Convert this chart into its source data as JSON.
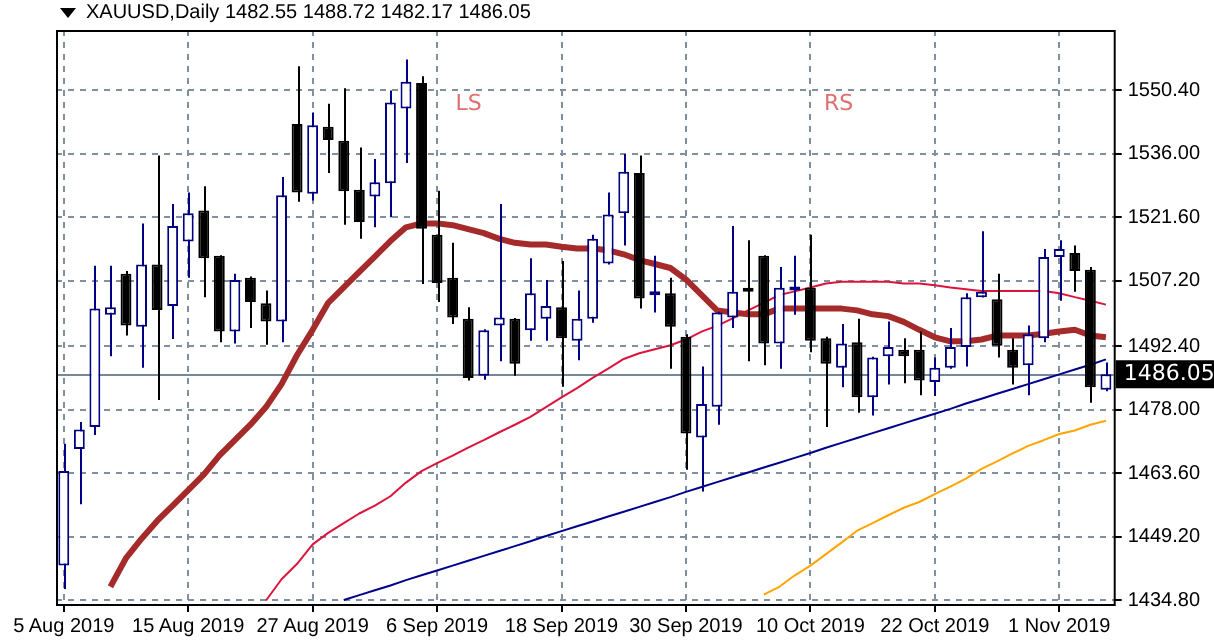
{
  "chart_data": {
    "type": "candlestick",
    "title": "XAUUSD,Daily 1482.55 1488.72 1482.17 1486.05",
    "categories": [
      "5 Aug 2019",
      null,
      null,
      null,
      null,
      null,
      null,
      null,
      "15 Aug 2019",
      null,
      null,
      null,
      null,
      null,
      null,
      null,
      "27 Aug 2019",
      null,
      null,
      null,
      null,
      null,
      null,
      null,
      "6 Sep 2019",
      null,
      null,
      null,
      null,
      null,
      null,
      null,
      "18 Sep 2019",
      null,
      null,
      null,
      null,
      null,
      null,
      null,
      "30 Sep 2019",
      null,
      null,
      null,
      null,
      null,
      null,
      null,
      "10 Oct 2019",
      null,
      null,
      null,
      null,
      null,
      null,
      null,
      "22 Oct 2019",
      null,
      null,
      null,
      null,
      null,
      null,
      null,
      "1 Nov 2019",
      null,
      null,
      null
    ],
    "colors": [
      "#000080",
      "#000080",
      "#000080",
      "#000080",
      "#000000",
      "#000080",
      "#000000",
      "#000080",
      "#000080",
      "#000000",
      "#000000",
      "#000080",
      "#000000",
      "#000000",
      "#000080",
      "#000000",
      "#000080",
      "#000000",
      "#000000",
      "#000000",
      "#000080",
      "#000080",
      "#000080",
      "#000000",
      "#000000",
      "#000000",
      "#000000",
      "#000080",
      "#000080",
      "#000000",
      "#000080",
      "#000080",
      "#000000",
      "#000080",
      "#000080",
      "#000080",
      "#000080",
      "#000000",
      "#000080",
      "#000000",
      "#000000",
      "#000080",
      "#000080",
      "#000080",
      "#000000",
      "#000000",
      "#000080",
      "#000080",
      "#000000",
      "#000000",
      "#000080",
      "#000000",
      "#000080",
      "#000080",
      "#000000",
      "#000000",
      "#000080",
      "#000080",
      "#000080",
      "#000080",
      "#000000",
      "#000000",
      "#000080",
      "#000080",
      "#000080",
      "#000000",
      "#000000",
      "#000080"
    ],
    "ohlc": [
      [
        1442.7,
        1470.3,
        1437.4,
        1464.1
      ],
      [
        1469.1,
        1475.2,
        1456.6,
        1473.5
      ],
      [
        1474.1,
        1510.6,
        1472.3,
        1500.9
      ],
      [
        1499.5,
        1510.6,
        1490.1,
        1501.2
      ],
      [
        1508.8,
        1509.4,
        1494.8,
        1497.1
      ],
      [
        1496.8,
        1520.2,
        1487.5,
        1510.9
      ],
      [
        1510.9,
        1535.6,
        1480.2,
        1500.6
      ],
      [
        1501.5,
        1524.6,
        1494.0,
        1519.6
      ],
      [
        1516.1,
        1527.2,
        1507.9,
        1522.5
      ],
      [
        1523.1,
        1528.6,
        1503.5,
        1512.3
      ],
      [
        1512.9,
        1513.0,
        1493.3,
        1495.7
      ],
      [
        1495.7,
        1508.8,
        1493.0,
        1507.4
      ],
      [
        1507.9,
        1508.2,
        1496.5,
        1502.4
      ],
      [
        1502.1,
        1505.0,
        1492.7,
        1498.0
      ],
      [
        1498.0,
        1530.7,
        1493.3,
        1526.6
      ],
      [
        1542.7,
        1555.8,
        1525.1,
        1527.2
      ],
      [
        1526.9,
        1545.3,
        1525.4,
        1542.4
      ],
      [
        1542.1,
        1547.3,
        1531.6,
        1539.1
      ],
      [
        1538.9,
        1550.8,
        1519.9,
        1527.5
      ],
      [
        1527.8,
        1537.4,
        1516.7,
        1520.5
      ],
      [
        1526.3,
        1534.8,
        1519.3,
        1529.5
      ],
      [
        1529.3,
        1550.3,
        1521.6,
        1547.6
      ],
      [
        1546.2,
        1557.3,
        1533.9,
        1552.3
      ],
      [
        1552.0,
        1553.5,
        1506.5,
        1519.0
      ],
      [
        1517.6,
        1527.6,
        1502.4,
        1506.7
      ],
      [
        1507.9,
        1515.8,
        1497.4,
        1498.9
      ],
      [
        1498.6,
        1501.2,
        1484.6,
        1485.2
      ],
      [
        1485.7,
        1496.2,
        1484.8,
        1496.0
      ],
      [
        1497.1,
        1524.6,
        1489.0,
        1498.9
      ],
      [
        1498.6,
        1498.8,
        1485.7,
        1488.4
      ],
      [
        1496.0,
        1512.3,
        1493.6,
        1504.4
      ],
      [
        1498.6,
        1507.4,
        1493.6,
        1501.5
      ],
      [
        1501.2,
        1511.7,
        1483.2,
        1494.2
      ],
      [
        1493.6,
        1505.0,
        1489.2,
        1498.6
      ],
      [
        1498.6,
        1517.6,
        1497.7,
        1516.7
      ],
      [
        1511.1,
        1527.2,
        1510.9,
        1522.2
      ],
      [
        1522.5,
        1535.9,
        1515.2,
        1531.9
      ],
      [
        1531.6,
        1535.6,
        1500.9,
        1503.2
      ],
      [
        1503.9,
        1512.9,
        1500.0,
        1504.4
      ],
      [
        1504.4,
        1507.9,
        1487.3,
        1496.8
      ],
      [
        1494.5,
        1495.1,
        1464.4,
        1472.6
      ],
      [
        1471.7,
        1487.8,
        1459.5,
        1479.3
      ],
      [
        1478.7,
        1500.2,
        1474.6,
        1500.0
      ],
      [
        1498.9,
        1519.6,
        1496.5,
        1504.7
      ],
      [
        1505.3,
        1516.4,
        1489.0,
        1504.7
      ],
      [
        1512.9,
        1513.0,
        1488.1,
        1493.0
      ],
      [
        1493.0,
        1510.3,
        1487.3,
        1505.6
      ],
      [
        1505.0,
        1512.9,
        1499.5,
        1505.9
      ],
      [
        1505.6,
        1517.6,
        1491.0,
        1493.6
      ],
      [
        1494.2,
        1494.5,
        1474.1,
        1488.4
      ],
      [
        1487.5,
        1497.4,
        1483.1,
        1493.0
      ],
      [
        1493.3,
        1498.6,
        1477.3,
        1480.8
      ],
      [
        1480.8,
        1490.0,
        1476.7,
        1489.8
      ],
      [
        1490.1,
        1498.0,
        1483.7,
        1492.2
      ],
      [
        1491.6,
        1494.2,
        1484.0,
        1490.1
      ],
      [
        1491.6,
        1495.7,
        1481.3,
        1484.6
      ],
      [
        1484.3,
        1489.8,
        1481.1,
        1487.5
      ],
      [
        1487.5,
        1496.5,
        1487.3,
        1492.2
      ],
      [
        1492.2,
        1504.4,
        1487.8,
        1503.5
      ],
      [
        1503.5,
        1518.4,
        1503.4,
        1504.7
      ],
      [
        1503.0,
        1508.8,
        1489.8,
        1492.5
      ],
      [
        1491.6,
        1494.2,
        1483.7,
        1487.5
      ],
      [
        1488.1,
        1497.1,
        1481.3,
        1495.1
      ],
      [
        1494.2,
        1514.4,
        1493.3,
        1512.6
      ],
      [
        1512.6,
        1516.4,
        1502.7,
        1514.4
      ],
      [
        1513.5,
        1515.2,
        1504.7,
        1509.4
      ],
      [
        1509.7,
        1510.3,
        1479.6,
        1483.1
      ],
      [
        1482.55,
        1488.72,
        1482.17,
        1486.05
      ]
    ],
    "series": [
      {
        "type": "line",
        "color": "#a52a2a",
        "values": [
          null,
          null,
          null,
          1437.9,
          1444.4,
          1448.8,
          1452.8,
          1456.3,
          1459.8,
          1463.3,
          1467.6,
          1471.1,
          1474.6,
          1478.6,
          1483.8,
          1490.4,
          1496.1,
          1502.2,
          1505.7,
          1509.2,
          1512.7,
          1516.2,
          1519.3,
          1520.2,
          1520.2,
          1519.8,
          1518.9,
          1518.0,
          1516.7,
          1515.8,
          1515.4,
          1515.4,
          1514.9,
          1514.5,
          1514.5,
          1514.1,
          1513.2,
          1511.9,
          1511.0,
          1510.1,
          1507.5,
          1504.0,
          1500.5,
          1500.0,
          1499.6,
          1499.6,
          1500.9,
          1500.9,
          1500.9,
          1500.9,
          1500.9,
          1500.5,
          1499.6,
          1499.2,
          1497.9,
          1496.1,
          1494.4,
          1493.5,
          1493.5,
          1493.9,
          1494.8,
          1494.8,
          1494.8,
          1495.2,
          1495.7,
          1496.1,
          1494.8,
          1494.4
        ]
      },
      {
        "type": "line",
        "color": "#dc143c",
        "values": [
          null,
          null,
          null,
          null,
          null,
          null,
          null,
          null,
          null,
          null,
          null,
          null,
          null,
          1434.8,
          1439.6,
          1443.1,
          1447.5,
          1450.1,
          1452.3,
          1454.5,
          1456.3,
          1458.4,
          1461.5,
          1464.1,
          1465.9,
          1467.6,
          1469.4,
          1471.1,
          1472.9,
          1474.6,
          1476.4,
          1478.6,
          1480.8,
          1482.9,
          1485.2,
          1487.3,
          1489.5,
          1490.8,
          1491.7,
          1492.6,
          1493.9,
          1495.7,
          1497.0,
          1498.7,
          1500.5,
          1502.2,
          1504.0,
          1504.8,
          1505.7,
          1506.6,
          1507.0,
          1507.0,
          1507.0,
          1507.0,
          1506.6,
          1506.6,
          1506.2,
          1505.7,
          1505.3,
          1504.9,
          1504.9,
          1504.9,
          1504.9,
          1504.9,
          1504.4,
          1503.5,
          1502.7,
          1501.8
        ]
      },
      {
        "type": "line",
        "color": "#ffa500",
        "values": [
          null,
          null,
          null,
          null,
          null,
          null,
          null,
          null,
          null,
          null,
          null,
          null,
          null,
          null,
          null,
          null,
          null,
          null,
          null,
          null,
          null,
          null,
          null,
          null,
          null,
          null,
          null,
          null,
          null,
          null,
          null,
          null,
          null,
          null,
          null,
          null,
          null,
          null,
          null,
          null,
          null,
          null,
          null,
          null,
          null,
          1436.1,
          1437.9,
          1440.5,
          1442.7,
          1445.3,
          1447.9,
          1450.6,
          1452.3,
          1454.1,
          1455.8,
          1457.1,
          1458.9,
          1460.6,
          1462.4,
          1464.6,
          1466.3,
          1468.1,
          1469.8,
          1471.1,
          1472.5,
          1473.3,
          1474.6,
          1475.5
        ]
      },
      {
        "type": "line",
        "color": "#00008b",
        "values": [
          null,
          null,
          null,
          null,
          null,
          null,
          null,
          null,
          null,
          null,
          null,
          null,
          null,
          null,
          null,
          null,
          null,
          null,
          1434.9,
          1436.0,
          1437.1,
          1438.2,
          1439.4,
          1440.5,
          1441.6,
          1442.7,
          1443.8,
          1444.9,
          1446.0,
          1447.1,
          1448.2,
          1449.4,
          1450.5,
          1451.6,
          1452.7,
          1453.8,
          1454.9,
          1456.0,
          1457.1,
          1458.2,
          1459.4,
          1460.5,
          1461.6,
          1462.7,
          1463.8,
          1464.9,
          1466.0,
          1467.1,
          1468.2,
          1469.4,
          1470.5,
          1471.6,
          1472.7,
          1473.8,
          1474.9,
          1476.0,
          1477.1,
          1478.2,
          1479.4,
          1480.5,
          1481.6,
          1482.7,
          1483.8,
          1484.9,
          1486.0,
          1487.1,
          1488.2,
          1489.4
        ]
      }
    ],
    "ylim": [
      1434,
      1564
    ],
    "yticks": [
      {
        "value": 1434.8,
        "label": "1434.80"
      },
      {
        "value": 1449.2,
        "label": "1449.20"
      },
      {
        "value": 1463.6,
        "label": "1463.60"
      },
      {
        "value": 1478,
        "label": "1478.00"
      },
      {
        "value": 1492.4,
        "label": "1492.40"
      },
      {
        "value": 1507.2,
        "label": "1507.20"
      },
      {
        "value": 1521.6,
        "label": "1521.60"
      },
      {
        "value": 1536,
        "label": "1536.00"
      },
      {
        "value": 1550.4,
        "label": "1550.40"
      }
    ],
    "ref_lines": [
      {
        "axis": "y",
        "value": 1486.05,
        "label": "1486.05",
        "color": "#778899"
      }
    ],
    "annotations": [
      "LS",
      "RS"
    ],
    "grid": true,
    "legend": false
  }
}
